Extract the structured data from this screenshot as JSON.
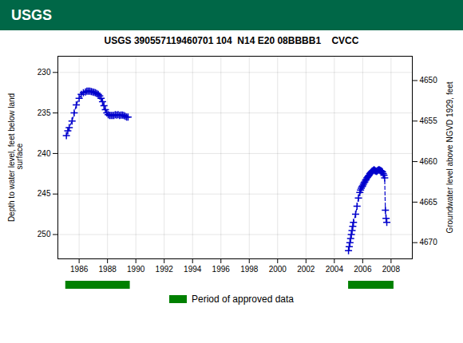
{
  "chart_data": {
    "type": "line",
    "title": "USGS 390557119460701 104  N14 E20 08BBBB1    CVCC",
    "annotations": [
      {
        "text": "USGS",
        "color": "#006747"
      }
    ],
    "ylabel": "Depth to water level, feet below land\n surface",
    "y2label": "Groundwater level above NGVD 1929, feet",
    "xlim": [
      1984.5,
      2009.5
    ],
    "xticks": [
      1986,
      1988,
      1990,
      1992,
      1994,
      1996,
      1998,
      2000,
      2002,
      2004,
      2006,
      2008
    ],
    "ylim": [
      253,
      228
    ],
    "yticks": [
      230,
      235,
      240,
      245,
      250
    ],
    "y2lim": [
      4672,
      4647
    ],
    "y2ticks": [
      4670,
      4665,
      4660,
      4655,
      4650
    ],
    "grid": true,
    "legend": "bottom",
    "series": [
      {
        "color": "#0000CC",
        "line_style": "dashed",
        "marker": "plus",
        "x": [
          1985.1,
          1985.2,
          1985.3,
          1985.5,
          1985.65,
          1985.8,
          1986.0,
          1986.15,
          1986.3,
          1986.45,
          1986.55,
          1986.65,
          1986.75,
          1986.85,
          1986.95,
          1987.05,
          1987.15,
          1987.25,
          1987.35,
          1987.45,
          1987.55,
          1987.65,
          1987.75,
          1987.85,
          1987.95,
          1988.05,
          1988.15,
          1988.25,
          1988.35,
          1988.45,
          1988.55,
          1988.65,
          1988.75,
          1988.85,
          1988.95,
          1989.05,
          1989.15,
          1989.25,
          1989.35,
          1989.45
        ],
        "values": [
          237.8,
          237.2,
          236.8,
          236.0,
          235.0,
          234.0,
          233.2,
          232.7,
          232.5,
          232.4,
          232.3,
          232.3,
          232.3,
          232.35,
          232.4,
          232.45,
          232.5,
          232.6,
          232.7,
          232.9,
          233.2,
          233.6,
          234.1,
          234.6,
          235.0,
          235.2,
          235.3,
          235.3,
          235.3,
          235.3,
          235.2,
          235.25,
          235.2,
          235.3,
          235.25,
          235.25,
          235.3,
          235.4,
          235.5,
          235.5
        ]
      },
      {
        "color": "#0000CC",
        "line_style": "dashed",
        "marker": "plus",
        "x": [
          2005.0,
          2005.05,
          2005.1,
          2005.15,
          2005.2,
          2005.25,
          2005.3,
          2005.35,
          2005.5,
          2005.6,
          2005.7,
          2005.8,
          2005.85,
          2005.9,
          2005.95,
          2006.0,
          2006.05,
          2006.1,
          2006.15,
          2006.2,
          2006.25,
          2006.3,
          2006.35,
          2006.4,
          2006.45,
          2006.5,
          2006.55,
          2006.6,
          2006.65,
          2006.7,
          2006.75,
          2006.8,
          2006.85,
          2006.9,
          2006.95,
          2007.0,
          2007.05,
          2007.1,
          2007.15,
          2007.2,
          2007.25,
          2007.3,
          2007.35,
          2007.4,
          2007.45,
          2007.5,
          2007.55,
          2007.6,
          2007.65,
          2007.7
        ],
        "values": [
          252.0,
          251.5,
          251.0,
          250.5,
          250.0,
          249.5,
          249.0,
          248.5,
          247.5,
          246.5,
          245.5,
          244.8,
          244.5,
          244.3,
          244.1,
          244.0,
          243.8,
          243.6,
          243.5,
          243.3,
          243.2,
          243.0,
          242.9,
          242.8,
          242.7,
          242.5,
          242.4,
          242.3,
          242.2,
          242.15,
          242.1,
          242.0,
          242.1,
          242.15,
          242.2,
          242.2,
          242.1,
          242.05,
          242.0,
          242.05,
          242.1,
          242.15,
          242.2,
          242.3,
          242.5,
          242.7,
          243.0,
          247.0,
          248.0,
          248.5
        ]
      }
    ],
    "approved_periods": {
      "name": "Period of approved data",
      "color": "#008000",
      "x0": [
        1985.05,
        2005.0
      ],
      "x1": [
        1989.6,
        2008.2
      ]
    }
  }
}
